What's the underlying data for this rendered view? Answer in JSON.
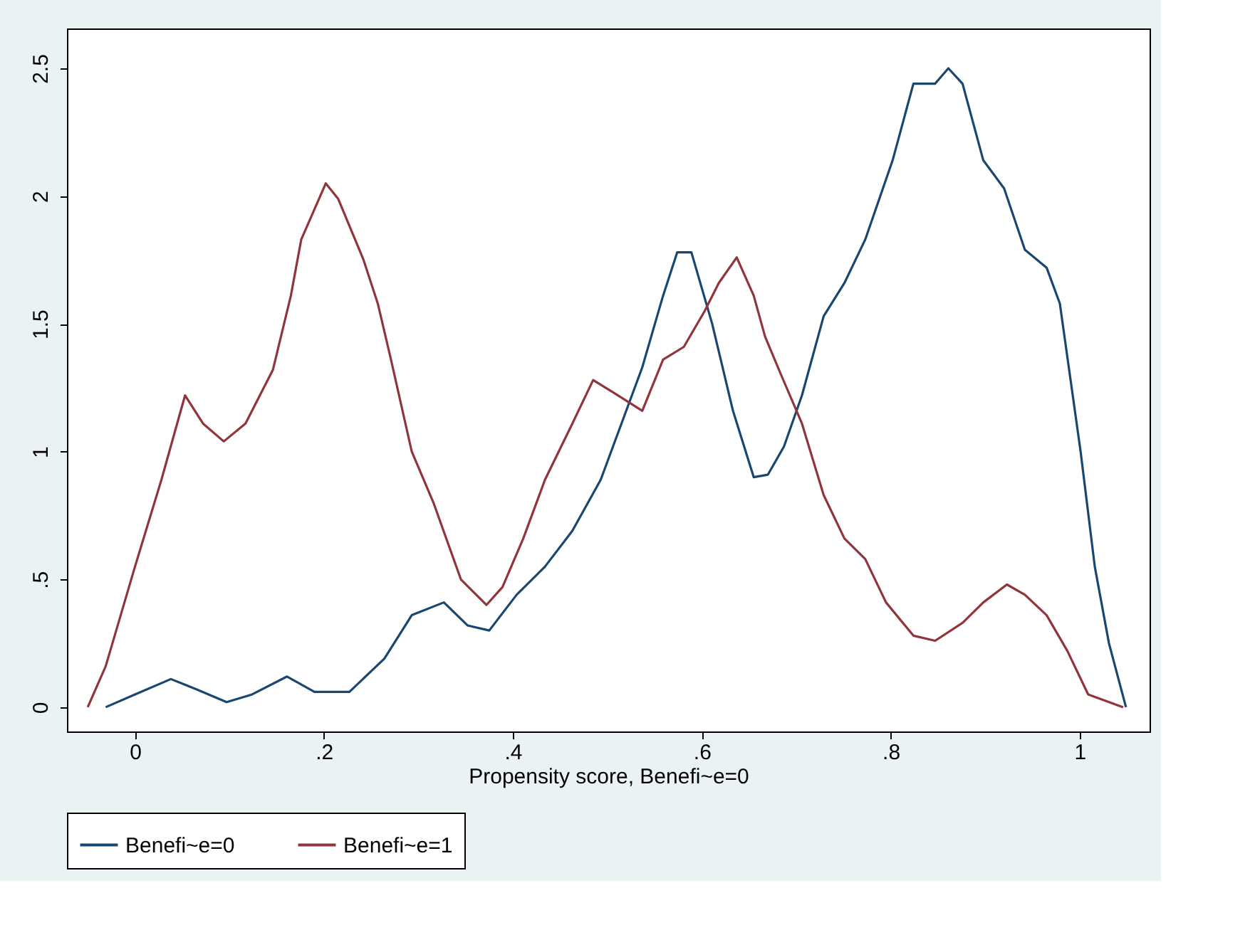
{
  "chart_data": {
    "type": "line",
    "xlabel": "Propensity score, Benefi~e=0",
    "xlim": [
      -0.072,
      1.074
    ],
    "ylim": [
      -0.095,
      2.656
    ],
    "xticks": [
      {
        "value": 0,
        "label": "0"
      },
      {
        "value": 0.2,
        "label": ".2"
      },
      {
        "value": 0.4,
        "label": ".4"
      },
      {
        "value": 0.6,
        "label": ".6"
      },
      {
        "value": 0.8,
        "label": ".8"
      },
      {
        "value": 1,
        "label": "1"
      }
    ],
    "yticks": [
      0,
      {
        "value": 0.5,
        "label": ".5"
      },
      1,
      1.5,
      2,
      2.5
    ],
    "grid": false,
    "legend": "bottom",
    "marker": "none",
    "line_style": "solid",
    "series": [
      {
        "name": "Benefi~e=0",
        "color": "#1a476f",
        "x": [
          -0.031,
          0,
          0.038,
          0.065,
          0.097,
          0.124,
          0.161,
          0.19,
          0.227,
          0.264,
          0.293,
          0.327,
          0.352,
          0.375,
          0.404,
          0.434,
          0.463,
          0.493,
          0.515,
          0.537,
          0.559,
          0.574,
          0.589,
          0.611,
          0.633,
          0.655,
          0.67,
          0.687,
          0.706,
          0.729,
          0.751,
          0.773,
          0.802,
          0.824,
          0.847,
          0.861,
          0.876,
          0.898,
          0.92,
          0.942,
          0.965,
          0.979,
          1.001,
          1.016,
          1.031,
          1.049
        ],
        "values": [
          0,
          0.05,
          0.11,
          0.07,
          0.02,
          0.05,
          0.12,
          0.06,
          0.06,
          0.19,
          0.36,
          0.41,
          0.32,
          0.3,
          0.44,
          0.55,
          0.69,
          0.89,
          1.11,
          1.33,
          1.61,
          1.78,
          1.78,
          1.5,
          1.16,
          0.9,
          0.91,
          1.02,
          1.22,
          1.53,
          1.66,
          1.83,
          2.14,
          2.44,
          2.44,
          2.5,
          2.44,
          2.14,
          2.03,
          1.79,
          1.72,
          1.58,
          1.0,
          0.55,
          0.25,
          0
        ]
      },
      {
        "name": "Benefi~e=1",
        "color": "#90353b",
        "x": [
          -0.05,
          -0.031,
          0,
          0.028,
          0.053,
          0.072,
          0.094,
          0.117,
          0.146,
          0.165,
          0.176,
          0.202,
          0.215,
          0.242,
          0.257,
          0.271,
          0.293,
          0.316,
          0.345,
          0.372,
          0.389,
          0.411,
          0.434,
          0.463,
          0.485,
          0.507,
          0.537,
          0.559,
          0.581,
          0.603,
          0.618,
          0.637,
          0.655,
          0.667,
          0.684,
          0.706,
          0.729,
          0.751,
          0.773,
          0.795,
          0.824,
          0.847,
          0.876,
          0.898,
          0.923,
          0.942,
          0.965,
          0.987,
          1.009,
          1.046
        ],
        "values": [
          0,
          0.16,
          0.55,
          0.89,
          1.22,
          1.11,
          1.04,
          1.11,
          1.32,
          1.61,
          1.83,
          2.05,
          1.99,
          1.75,
          1.58,
          1.36,
          1.0,
          0.8,
          0.5,
          0.4,
          0.47,
          0.66,
          0.89,
          1.11,
          1.28,
          1.23,
          1.16,
          1.36,
          1.41,
          1.55,
          1.66,
          1.76,
          1.61,
          1.45,
          1.3,
          1.11,
          0.83,
          0.66,
          0.58,
          0.41,
          0.28,
          0.26,
          0.33,
          0.41,
          0.48,
          0.44,
          0.36,
          0.22,
          0.05,
          0
        ]
      }
    ]
  }
}
